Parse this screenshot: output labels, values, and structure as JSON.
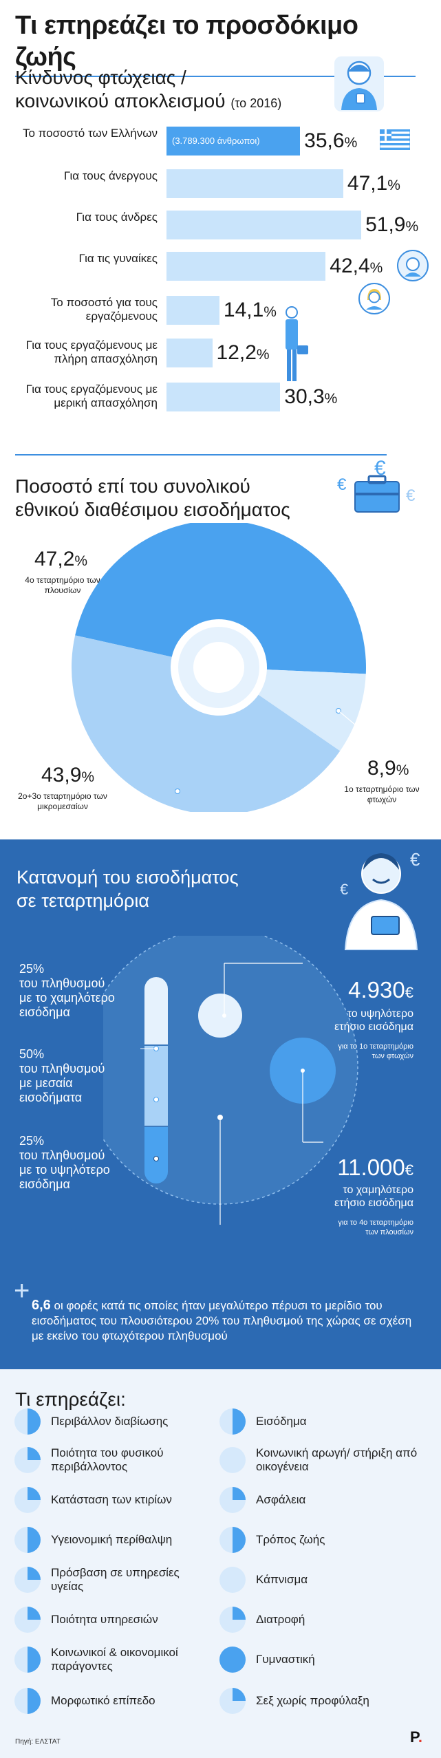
{
  "header": {
    "title": "Τι επηρεάζει το προσδόκιμο ζωής"
  },
  "poverty": {
    "title_line1": "Κίνδυνος φτώχειας /",
    "title_line2": "κοινωνικού αποκλεισμού",
    "year": "(το 2016)",
    "bars": [
      {
        "label": "Το ποσοστό των Ελλήνων",
        "value": 35.6,
        "display": "35,6",
        "note": "(3.789.300 άνθρωποι)"
      },
      {
        "label": "Για τους άνεργους",
        "value": 47.1,
        "display": "47,1"
      },
      {
        "label": "Για τους άνδρες",
        "value": 51.9,
        "display": "51,9"
      },
      {
        "label": "Για τις γυναίκες",
        "value": 42.4,
        "display": "42,4"
      },
      {
        "label": "Το ποσοστό για τους εργαζόμενους",
        "value": 14.1,
        "display": "14,1"
      },
      {
        "label": "Για τους εργαζόμενους με πλήρη απασχόληση",
        "value": 12.2,
        "display": "12,2"
      },
      {
        "label": "Για τους εργαζόμενους με μερική απασχόληση",
        "value": 30.3,
        "display": "30,3"
      }
    ],
    "pct_sign": "%"
  },
  "income_share": {
    "title_line1": "Ποσοστό επί του συνολικού",
    "title_line2": "εθνικού διαθέσιμου εισοδήματος",
    "euro_sign": "€"
  },
  "distribution": {
    "title_line1": "Κατανομή του εισοδήματος",
    "title_line2": "σε τεταρτημόρια",
    "quartiles": [
      {
        "line1": "25%",
        "line2": "του πληθυσμού",
        "line3": "με το χαμηλότερο",
        "line4": "εισόδημα"
      },
      {
        "line1": "50%",
        "line2": "του πληθυσμού",
        "line3": "με μεσαία",
        "line4": "εισοδήματα"
      },
      {
        "line1": "25%",
        "line2": "του πληθυσμού",
        "line3": "με το υψηλότερο",
        "line4": "εισόδημα"
      }
    ],
    "low": {
      "value": "4.930",
      "currency": "€",
      "sub1": "το υψηλότερο",
      "sub2": "ετήσιο εισόδημα",
      "tiny1": "για το 1ο τεταρτημόριο",
      "tiny2": "των φτωχών"
    },
    "high": {
      "value": "11.000",
      "currency": "€",
      "sub1": "το χαμηλότερο",
      "sub2": "ετήσιο εισόδημα",
      "tiny1": "για το 4ο τεταρτημόριο",
      "tiny2": "των πλουσίων"
    },
    "plus_sign": "+",
    "footnote_num": "6,6",
    "footnote_text": " οι φορές κατά τις οποίες ήταν μεγαλύτερο πέρυσι το μερίδιο του εισοδήματος του πλουσιότερου 20% του πληθυσμού της χώρας σε σχέση με εκείνο του φτωχότερου πληθυσμού"
  },
  "factors": {
    "title": "Τι επηρεάζει:",
    "left": [
      {
        "label": "Περιβάλλον διαβίωσης",
        "fill": 0.5
      },
      {
        "label": "Ποιότητα του φυσικού περιβάλλοντος",
        "fill": 0.25
      },
      {
        "label": "Κατάσταση των κτιρίων",
        "fill": 0.25
      },
      {
        "label": "Υγειονομική περίθαλψη",
        "fill": 0.5
      },
      {
        "label": "Πρόσβαση σε υπηρεσίες υγείας",
        "fill": 0.25
      },
      {
        "label": "Ποιότητα υπηρεσιών",
        "fill": 0.25
      },
      {
        "label": "Κοινωνικοί & οικονομικοί παράγοντες",
        "fill": 0.5
      },
      {
        "label": "Μορφωτικό επίπεδο",
        "fill": 0.5
      }
    ],
    "right": [
      {
        "label": "Εισόδημα",
        "fill": 0.5
      },
      {
        "label": "Κοινωνική αρωγή/ στήριξη από οικογένεια",
        "fill": 0.0
      },
      {
        "label": "Ασφάλεια",
        "fill": 0.25
      },
      {
        "label": "Τρόπος ζωής",
        "fill": 0.5
      },
      {
        "label": "Κάπνισμα",
        "fill": 0.0
      },
      {
        "label": "Διατροφή",
        "fill": 0.25
      },
      {
        "label": "Γυμναστική",
        "fill": 1.0
      },
      {
        "label": "Σεξ χωρίς προφύλαξη",
        "fill": 0.25
      }
    ],
    "source": "Πηγή: ΕΛΣΤΑΤ",
    "logo": "P",
    "logo_dot": "."
  },
  "chart_data": [
    {
      "type": "bar",
      "orientation": "horizontal",
      "title": "Κίνδυνος φτώχειας / κοινωνικού αποκλεισμού (το 2016)",
      "categories": [
        "Το ποσοστό των Ελλήνων",
        "Για τους άνεργους",
        "Για τους άνδρες",
        "Για τις γυναίκες",
        "Το ποσοστό για τους εργαζόμενους",
        "Για τους εργαζόμενους με πλήρη απασχόληση",
        "Για τους εργαζόμενους με μερική απασχόληση"
      ],
      "values": [
        35.6,
        47.1,
        51.9,
        42.4,
        14.1,
        12.2,
        30.3
      ],
      "unit": "%"
    },
    {
      "type": "pie",
      "title": "Ποσοστό επί του συνολικού εθνικού διαθέσιμου εισοδήματος",
      "labels": [
        "4ο τεταρτημόριο των πλουσίων",
        "2ο+3ο τεταρτημόριο των μικρομεσαίων",
        "1ο τεταρτημόριο των φτωχών"
      ],
      "values": [
        47.2,
        43.9,
        8.9
      ],
      "display": [
        "47,2",
        "43,9",
        "8,9"
      ],
      "colors": [
        "#4aa2ef",
        "#a9d2f7",
        "#d9ecfc"
      ],
      "unit": "%"
    }
  ]
}
